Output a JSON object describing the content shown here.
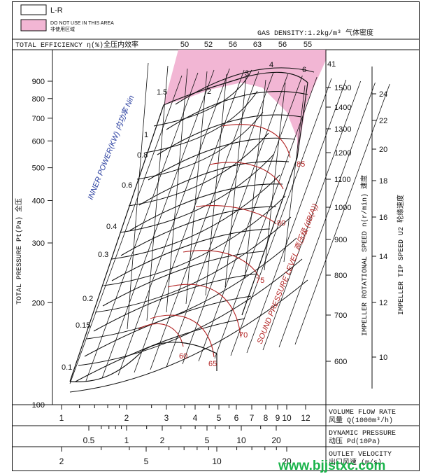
{
  "legend": {
    "lr_label": "L-R",
    "not_use_en": "DO NOT USE IN THIS AREA",
    "not_use_cn": "非使用区域"
  },
  "header": {
    "gas_density": "GAS DENSITY:1.2kg/m³ 气体密度",
    "total_efficiency": "TOTAL EFFICIENCY η(%)全压内效率"
  },
  "colors": {
    "not_use_fill": "#f2b6d4",
    "red_curves": "#b22222",
    "grid": "#000000"
  },
  "chart_data": {
    "type": "line",
    "title": "",
    "ylabel": "TOTAL PRESSURE Pt(Pa) 全压",
    "y_scale": "log",
    "y_ticks": [
      100,
      200,
      300,
      400,
      500,
      600,
      700,
      800,
      900
    ],
    "efficiency_ticks": [
      "50",
      "52",
      "56",
      "63",
      "56",
      "55"
    ],
    "inner_power_label": "INNER POWER(KW) 内功率 Nin",
    "inner_power_values": [
      "0.1",
      "0.15",
      "0.2",
      "0.3",
      "0.4",
      "0.6",
      "0.8",
      "1",
      "1.5",
      "2",
      "3",
      "4",
      "6"
    ],
    "sound_label": "SOUND PRESSURE LEVEL 声压级 (dB(A))",
    "sound_levels": [
      "60",
      "65",
      "70",
      "75",
      "80",
      "85"
    ],
    "speed_label": "IMPELLER ROTATIONAL SPEED n(r/min) 速度",
    "speed_ticks": [
      "600",
      "700",
      "800",
      "900",
      "1000",
      "1100",
      "1200",
      "1300",
      "1400",
      "1500"
    ],
    "tip_speed_label": "IMPELLER TIP SPEED U2 轮缘速度",
    "tip_speed_ticks": [
      "10",
      "12",
      "14",
      "16",
      "18",
      "20",
      "22",
      "24"
    ],
    "corner_value": "41",
    "flow_label": "VOLUME FLOW RATE 风量 Q(1000m³/h)",
    "flow_ticks": [
      "1",
      "2",
      "3",
      "4",
      "5",
      "6",
      "7",
      "8",
      "9",
      "10",
      "12"
    ],
    "dyn_label": "DYNAMIC PRESSURE 动压 Pd(10Pa)",
    "dyn_ticks": [
      "0.5",
      "1",
      "2",
      "5",
      "10",
      "20"
    ],
    "outlet_label": "OUTLET VELOCITY 出口风速 (m/s)",
    "outlet_ticks": [
      "2",
      "5",
      "10",
      "20"
    ]
  },
  "watermark": "www.bjjstxc.com"
}
